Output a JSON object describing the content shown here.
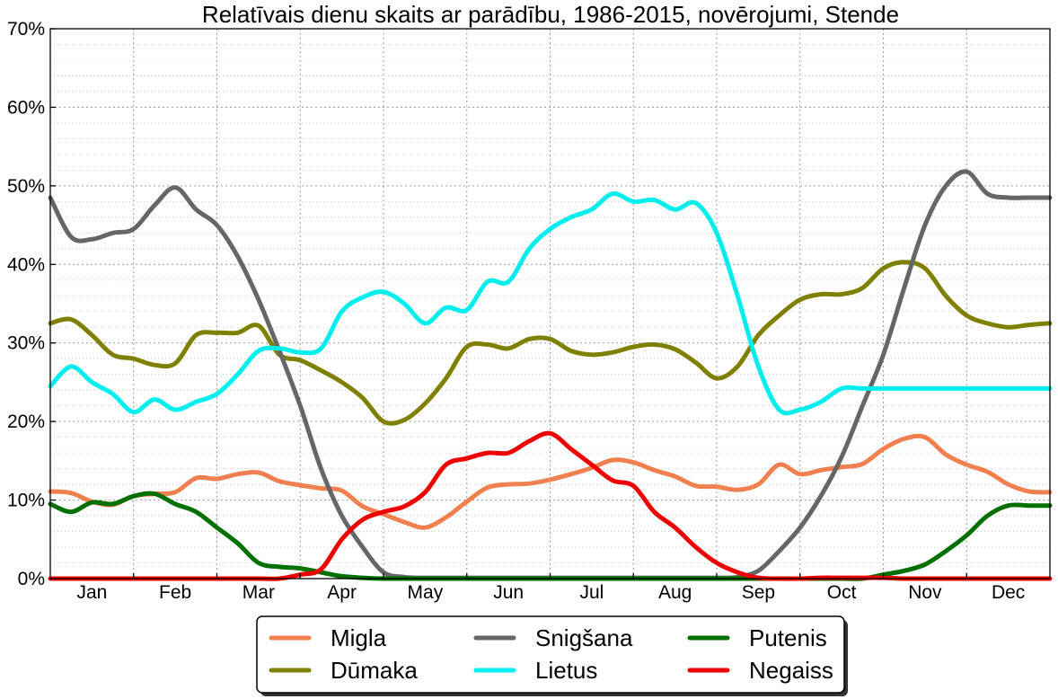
{
  "chart_data": {
    "type": "line",
    "title": "Relatīvais dienu skaits ar parādību, 1986-2015, novērojumi, Stende",
    "xlabel": "",
    "ylabel": "",
    "ylim": [
      0,
      70
    ],
    "xlim": [
      0,
      12
    ],
    "yticks": [
      0,
      10,
      20,
      30,
      40,
      50,
      60,
      70
    ],
    "ytick_labels": [
      "0%",
      "10%",
      "20%",
      "30%",
      "40%",
      "50%",
      "60%",
      "70%"
    ],
    "xticks": [
      0.5,
      1.5,
      2.5,
      3.5,
      4.5,
      5.5,
      6.5,
      7.5,
      8.5,
      9.5,
      10.5,
      11.5
    ],
    "xtick_labels": [
      "Jan",
      "Feb",
      "Mar",
      "Apr",
      "May",
      "Jun",
      "Jul",
      "Aug",
      "Sep",
      "Oct",
      "Nov",
      "Dec"
    ],
    "grid": true,
    "legend_position": "bottom-center",
    "x": [
      0,
      0.25,
      0.5,
      0.75,
      1.0,
      1.25,
      1.5,
      1.75,
      2.0,
      2.25,
      2.5,
      2.75,
      3.0,
      3.25,
      3.5,
      3.75,
      4.0,
      4.25,
      4.5,
      4.75,
      5.0,
      5.25,
      5.5,
      5.75,
      6.0,
      6.25,
      6.5,
      6.75,
      7.0,
      7.25,
      7.5,
      7.75,
      8.0,
      8.25,
      8.5,
      8.75,
      9.0,
      9.25,
      9.5,
      9.75,
      10.0,
      10.25,
      10.5,
      10.75,
      11.0,
      11.25,
      11.5,
      11.75,
      12.0
    ],
    "series": [
      {
        "name": "Migla",
        "color": "#f08050",
        "values": [
          11.1,
          10.9,
          9.8,
          9.4,
          10.5,
          10.8,
          11.0,
          12.8,
          12.7,
          13.3,
          13.5,
          12.4,
          11.9,
          11.5,
          11.2,
          9.2,
          8.2,
          7.2,
          6.5,
          7.8,
          9.8,
          11.6,
          12.0,
          12.1,
          12.6,
          13.3,
          14.1,
          15.1,
          14.8,
          13.8,
          13.0,
          11.8,
          11.7,
          11.3,
          12.0,
          14.5,
          13.3,
          13.8,
          14.2,
          14.6,
          16.5,
          17.8,
          18.0,
          15.8,
          14.5,
          13.6,
          12.0,
          11.1,
          11.0
        ]
      },
      {
        "name": "Dūmaka",
        "color": "#808000",
        "values": [
          32.5,
          33.0,
          31.0,
          28.5,
          28.0,
          27.2,
          27.4,
          31.0,
          31.3,
          31.3,
          32.2,
          28.5,
          27.8,
          26.5,
          25.0,
          23.0,
          20.0,
          20.2,
          22.3,
          25.5,
          29.5,
          29.8,
          29.3,
          30.5,
          30.5,
          29.0,
          28.5,
          28.8,
          29.5,
          29.8,
          29.2,
          27.5,
          25.5,
          27.0,
          31.0,
          33.5,
          35.5,
          36.2,
          36.2,
          37.0,
          39.5,
          40.3,
          39.5,
          36.0,
          33.5,
          32.5,
          32.0,
          32.3,
          32.5
        ]
      },
      {
        "name": "Snigšana",
        "color": "#666666",
        "values": [
          48.5,
          43.5,
          43.2,
          44.0,
          44.5,
          47.5,
          49.8,
          47.0,
          45.0,
          41.0,
          35.5,
          29.0,
          22.0,
          14.0,
          8.0,
          4.0,
          0.8,
          0.2,
          0.1,
          0.1,
          0.1,
          0.1,
          0.1,
          0.1,
          0.1,
          0.1,
          0.1,
          0.1,
          0.1,
          0.1,
          0.1,
          0.1,
          0.1,
          0.2,
          1.0,
          3.5,
          6.5,
          10.5,
          15.5,
          22.0,
          28.5,
          37.0,
          45.0,
          50.0,
          51.8,
          49.0,
          48.5,
          48.5,
          48.5
        ]
      },
      {
        "name": "Putenis",
        "color": "#007000",
        "values": [
          9.5,
          8.5,
          9.7,
          9.5,
          10.5,
          10.8,
          9.5,
          8.5,
          6.5,
          4.5,
          2.0,
          1.5,
          1.3,
          0.8,
          0.3,
          0.1,
          0.0,
          0.0,
          0.0,
          0.0,
          0.0,
          0.0,
          0.0,
          0.0,
          0.0,
          0.0,
          0.0,
          0.0,
          0.0,
          0.0,
          0.0,
          0.0,
          0.0,
          0.0,
          0.0,
          0.0,
          0.0,
          0.0,
          0.0,
          0.0,
          0.5,
          1.0,
          1.8,
          3.5,
          5.5,
          8.0,
          9.3,
          9.3,
          9.3
        ]
      },
      {
        "name": "Lietus",
        "color": "#00eeee",
        "values": [
          24.5,
          27.0,
          25.0,
          23.5,
          21.2,
          22.8,
          21.5,
          22.5,
          23.5,
          26.0,
          29.0,
          29.3,
          28.8,
          29.3,
          34.0,
          35.8,
          36.5,
          35.0,
          32.5,
          34.5,
          34.2,
          37.8,
          37.8,
          42.0,
          44.5,
          46.0,
          47.0,
          49.0,
          48.0,
          48.2,
          47.0,
          47.8,
          44.0,
          36.0,
          27.0,
          21.5,
          21.5,
          22.5,
          24.2,
          24.2,
          24.2,
          24.2,
          24.2,
          24.2,
          24.2,
          24.2,
          24.2,
          24.2,
          24.2
        ]
      },
      {
        "name": "Negaiss",
        "color": "#ee0000",
        "values": [
          0.0,
          0.0,
          0.0,
          0.0,
          0.0,
          0.0,
          0.0,
          0.0,
          0.0,
          0.0,
          0.0,
          0.0,
          0.5,
          1.2,
          5.0,
          7.5,
          8.5,
          9.2,
          11.0,
          14.5,
          15.3,
          16.0,
          16.0,
          17.5,
          18.5,
          16.5,
          14.5,
          12.5,
          11.8,
          8.5,
          6.5,
          4.0,
          2.0,
          0.8,
          0.1,
          0.0,
          0.0,
          0.1,
          0.1,
          0.1,
          0.1,
          0.0,
          0.0,
          0.0,
          0.0,
          0.0,
          0.0,
          0.0,
          0.0
        ]
      }
    ]
  }
}
